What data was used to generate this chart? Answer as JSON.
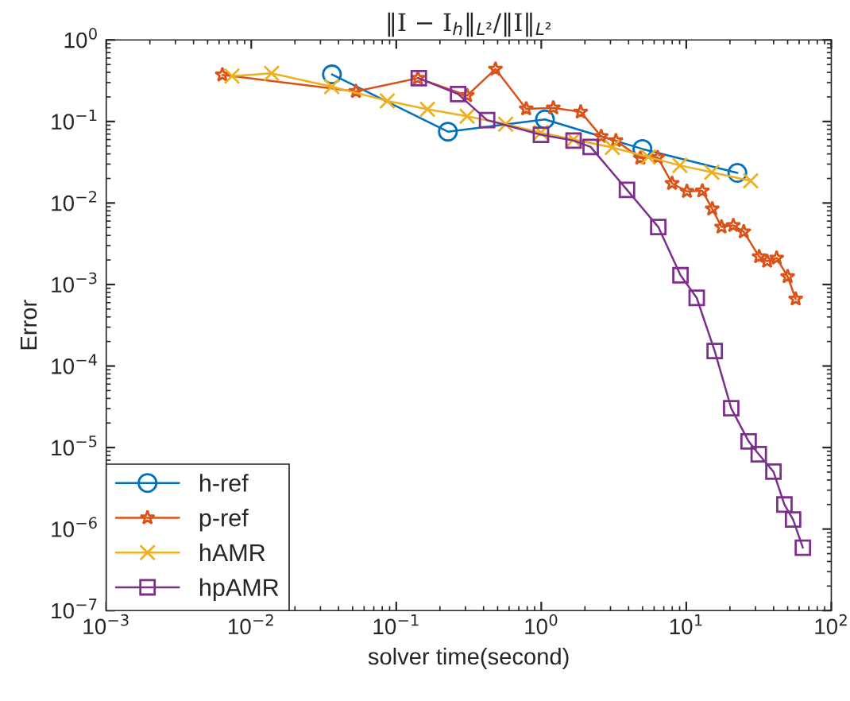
{
  "chart_data": {
    "type": "line",
    "title": "‖I − I$_{h}$‖$_{L²}$/‖I‖$_{L²}$",
    "xlabel": "solver time(second)",
    "ylabel": "Error",
    "log": "xy",
    "grid": false,
    "legend": "bottom left",
    "xlim": [
      0.001,
      100
    ],
    "ylim": [
      1e-07,
      1
    ],
    "xticks": [
      {
        "value": 0.001,
        "label": "10$^{−3}$"
      },
      {
        "value": 0.01,
        "label": "10$^{−2}$"
      },
      {
        "value": 0.1,
        "label": "10$^{−1}$"
      },
      {
        "value": 1,
        "label": "10$^{0}$"
      },
      {
        "value": 10,
        "label": "10$^{1}$"
      },
      {
        "value": 100,
        "label": "10$^{2}$"
      }
    ],
    "yticks": [
      {
        "value": 1e-07,
        "label": "10$^{−7}$"
      },
      {
        "value": 1e-06,
        "label": "10$^{−6}$"
      },
      {
        "value": 1e-05,
        "label": "10$^{−5}$"
      },
      {
        "value": 0.0001,
        "label": "10$^{−4}$"
      },
      {
        "value": 0.001,
        "label": "10$^{−3}$"
      },
      {
        "value": 0.01,
        "label": "10$^{−2}$"
      },
      {
        "value": 0.1,
        "label": "10$^{−1}$"
      },
      {
        "value": 1,
        "label": "10$^{0}$"
      }
    ],
    "series": [
      {
        "name": "h-ref",
        "color": "#0072bd",
        "marker": "circle",
        "x": [
          0.036,
          0.227,
          1.06,
          4.98,
          22.5
        ],
        "values": [
          0.378,
          0.075,
          0.106,
          0.046,
          0.0234
        ]
      },
      {
        "name": "p-ref",
        "color": "#d95319",
        "marker": "star",
        "x": [
          0.00632,
          0.0527,
          0.141,
          0.308,
          0.483,
          0.787,
          1.21,
          1.87,
          2.59,
          3.27,
          4.82,
          6.35,
          7.98,
          10.1,
          12.9,
          15.1,
          17.5,
          21.1,
          24.9,
          31.8,
          36.1,
          42.0,
          50.0,
          56.8
        ],
        "values": [
          0.373,
          0.234,
          0.34,
          0.208,
          0.44,
          0.143,
          0.147,
          0.131,
          0.0656,
          0.0583,
          0.0356,
          0.0361,
          0.0174,
          0.0139,
          0.0141,
          0.00847,
          0.00508,
          0.00531,
          0.00444,
          0.0022,
          0.00193,
          0.00211,
          0.00125,
          0.000665
        ]
      },
      {
        "name": "hAMR",
        "color": "#edb120",
        "marker": "cross",
        "x": [
          0.00736,
          0.0138,
          0.0359,
          0.0867,
          0.164,
          0.308,
          0.568,
          0.995,
          1.67,
          3.09,
          5.47,
          9.04,
          15.0,
          27.8
        ],
        "values": [
          0.361,
          0.39,
          0.268,
          0.179,
          0.141,
          0.116,
          0.0927,
          0.073,
          0.06,
          0.048,
          0.0366,
          0.0289,
          0.0238,
          0.0187
        ]
      },
      {
        "name": "hpAMR",
        "color": "#7e2f8e",
        "marker": "square",
        "x": [
          0.143,
          0.267,
          0.423,
          0.995,
          1.67,
          2.19,
          3.9,
          6.41,
          9.12,
          11.8,
          15.7,
          20.4,
          26.9,
          31.6,
          39.9,
          47.5,
          54.5,
          63.7
        ],
        "values": [
          0.34,
          0.217,
          0.104,
          0.0687,
          0.0583,
          0.0487,
          0.0145,
          0.00508,
          0.0013,
          0.000686,
          0.000153,
          3.04e-05,
          1.19e-05,
          8.28e-06,
          5.06e-06,
          2e-06,
          1.31e-06,
          5.9e-07
        ]
      }
    ]
  }
}
